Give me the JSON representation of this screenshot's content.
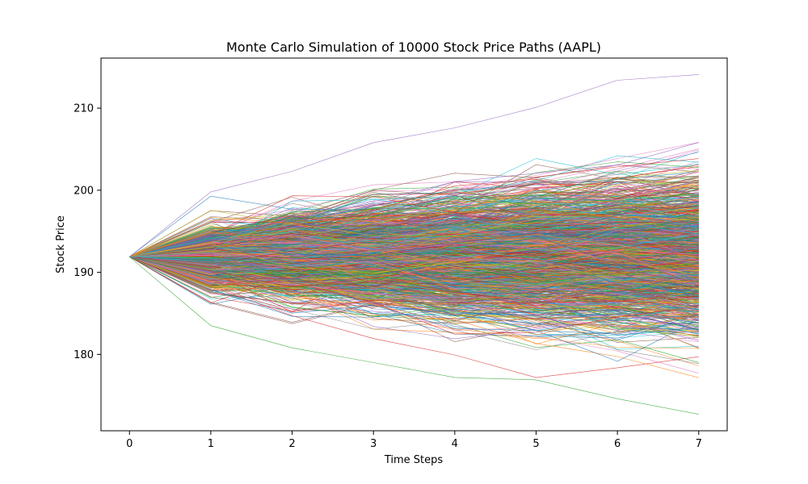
{
  "chart_data": {
    "type": "line",
    "title": "Monte Carlo Simulation of 10000 Stock Price Paths (AAPL)",
    "xlabel": "Time Steps",
    "ylabel": "Stock Price",
    "x": [
      0,
      1,
      2,
      3,
      4,
      5,
      6,
      7
    ],
    "xlim": [
      -0.35,
      7.35
    ],
    "ylim": [
      170.7,
      216.1
    ],
    "xticks": [
      0,
      1,
      2,
      3,
      4,
      5,
      6,
      7
    ],
    "yticks": [
      180,
      190,
      200,
      210
    ],
    "grid": false,
    "legend": "none",
    "start_price": 191.9,
    "path_count": 10000,
    "envelope": {
      "max": [
        191.9,
        199.8,
        202.3,
        205.8,
        207.6,
        210.1,
        213.4,
        214.1
      ],
      "min": [
        191.9,
        183.5,
        180.8,
        179.0,
        177.2,
        176.9,
        174.6,
        172.7
      ]
    },
    "colors": [
      "#1f77b4",
      "#ff7f0e",
      "#2ca02c",
      "#d62728",
      "#9467bd",
      "#8c564b",
      "#e377c2",
      "#7f7f7f",
      "#bcbd22",
      "#17becf"
    ]
  }
}
